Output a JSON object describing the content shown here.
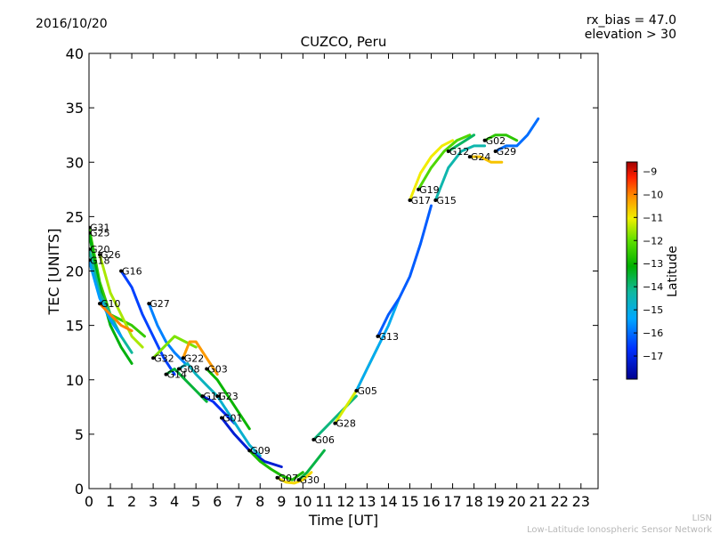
{
  "header": {
    "date": "2016/10/20",
    "rx_bias": "rx_bias = 47.0",
    "elevation": "elevation > 30"
  },
  "footer": {
    "line1": "LISN",
    "line2": "Low-Latitude Ionospheric Sensor Network"
  },
  "chart_data": {
    "type": "scatter",
    "title": "CUZCO, Peru",
    "xlabel": "Time [UT]",
    "ylabel": "TEC [UNITS]",
    "xlim": [
      0,
      23.8
    ],
    "ylim": [
      0,
      40
    ],
    "xticks": [
      0,
      1,
      2,
      3,
      4,
      5,
      6,
      7,
      8,
      9,
      10,
      11,
      12,
      13,
      14,
      15,
      16,
      17,
      18,
      19,
      20,
      21,
      22,
      23
    ],
    "yticks": [
      0,
      5,
      10,
      15,
      20,
      25,
      30,
      35,
      40
    ],
    "colorbar": {
      "label": "Latitude",
      "range": [
        -18,
        -8.6
      ],
      "ticks": [
        -17,
        -16,
        -15,
        -14,
        -13,
        -12,
        -11,
        -10,
        -9
      ]
    },
    "series": [
      {
        "name": "G31",
        "x": [
          0.0,
          0.5,
          1.0,
          1.5,
          2.0,
          2.6
        ],
        "y": [
          24.0,
          19.0,
          16.0,
          15.5,
          15.0,
          14.0
        ],
        "lat": -12.5
      },
      {
        "name": "G25",
        "x": [
          0.0,
          0.5,
          1.0,
          1.5,
          2.0
        ],
        "y": [
          23.5,
          18.5,
          15.0,
          13.0,
          11.5
        ],
        "lat": -13.2
      },
      {
        "name": "G20",
        "x": [
          0.0,
          0.5,
          1.0,
          1.5,
          2.0
        ],
        "y": [
          22.0,
          18.0,
          16.0,
          14.0,
          12.5
        ],
        "lat": -14.2
      },
      {
        "name": "G26",
        "x": [
          0.5,
          1.0,
          1.5,
          2.0,
          2.5
        ],
        "y": [
          21.5,
          18.0,
          16.0,
          14.0,
          13.0
        ],
        "lat": -11.5
      },
      {
        "name": "G18",
        "x": [
          0.0,
          0.5,
          1.0,
          1.5
        ],
        "y": [
          21.0,
          17.5,
          15.5,
          14.0
        ],
        "lat": -15.5
      },
      {
        "name": "G16",
        "x": [
          1.5,
          2.0,
          2.5,
          3.0,
          3.5,
          4.0
        ],
        "y": [
          20.0,
          18.5,
          16.0,
          14.0,
          12.0,
          10.5
        ],
        "lat": -16.5
      },
      {
        "name": "G10",
        "x": [
          0.5,
          1.0,
          1.5,
          2.0
        ],
        "y": [
          17.0,
          16.0,
          15.0,
          14.5
        ],
        "lat": -10.0
      },
      {
        "name": "G27",
        "x": [
          2.8,
          3.2,
          3.6,
          4.0,
          4.5
        ],
        "y": [
          17.0,
          15.0,
          13.5,
          12.5,
          11.5
        ],
        "lat": -15.8
      },
      {
        "name": "G32",
        "x": [
          3.0,
          3.5,
          4.0,
          4.5,
          5.0
        ],
        "y": [
          12.0,
          13.0,
          14.0,
          13.5,
          13.0
        ],
        "lat": -11.8
      },
      {
        "name": "G22",
        "x": [
          4.4,
          4.7,
          5.0,
          5.5,
          6.0
        ],
        "y": [
          12.0,
          13.5,
          13.5,
          12.0,
          10.5
        ],
        "lat": -10.2
      },
      {
        "name": "G08",
        "x": [
          4.2,
          4.6,
          5.0,
          5.5,
          6.0
        ],
        "y": [
          11.0,
          11.5,
          10.5,
          9.5,
          8.5
        ],
        "lat": -14.6
      },
      {
        "name": "G14",
        "x": [
          3.6,
          4.0,
          4.5,
          5.0,
          5.5
        ],
        "y": [
          10.5,
          11.0,
          10.0,
          9.0,
          8.0
        ],
        "lat": -13.5
      },
      {
        "name": "G03",
        "x": [
          5.5,
          6.0,
          6.5,
          7.0,
          7.5
        ],
        "y": [
          11.0,
          10.0,
          8.5,
          7.0,
          5.5
        ],
        "lat": -13.0
      },
      {
        "name": "G11",
        "x": [
          5.3,
          5.8,
          6.3,
          6.8
        ],
        "y": [
          8.5,
          8.0,
          7.0,
          6.0
        ],
        "lat": -16.8
      },
      {
        "name": "G23",
        "x": [
          6.0,
          6.5,
          7.0,
          7.5,
          8.0
        ],
        "y": [
          8.5,
          7.0,
          5.5,
          4.0,
          3.0
        ],
        "lat": -14.8
      },
      {
        "name": "G01",
        "x": [
          6.2,
          6.8,
          7.5,
          8.2,
          9.0
        ],
        "y": [
          6.5,
          5.0,
          3.5,
          2.5,
          2.0
        ],
        "lat": -17.2
      },
      {
        "name": "G09",
        "x": [
          7.5,
          8.0,
          8.5,
          9.0,
          9.5,
          10.0
        ],
        "y": [
          3.5,
          2.5,
          1.8,
          1.2,
          0.8,
          1.5
        ],
        "lat": -12.8
      },
      {
        "name": "G07",
        "x": [
          8.8,
          9.2,
          9.6,
          10.0,
          10.4
        ],
        "y": [
          1.0,
          0.6,
          0.5,
          0.8,
          1.5
        ],
        "lat": -10.8
      },
      {
        "name": "G30",
        "x": [
          9.8,
          10.2,
          10.6,
          11.0
        ],
        "y": [
          0.8,
          1.5,
          2.5,
          3.5
        ],
        "lat": -13.6
      },
      {
        "name": "G06",
        "x": [
          10.5,
          11.0,
          11.5,
          12.0,
          12.5
        ],
        "y": [
          4.5,
          5.5,
          6.5,
          7.5,
          8.5
        ],
        "lat": -14.0
      },
      {
        "name": "G28",
        "x": [
          11.5,
          12.0,
          12.5,
          13.0,
          13.5
        ],
        "y": [
          6.0,
          7.5,
          9.0,
          11.0,
          13.0
        ],
        "lat": -11.2
      },
      {
        "name": "G05",
        "x": [
          12.5,
          13.0,
          13.5,
          14.0,
          14.5
        ],
        "y": [
          9.0,
          11.0,
          13.0,
          15.0,
          17.5
        ],
        "lat": -15.2
      },
      {
        "name": "G13",
        "x": [
          13.5,
          14.0,
          14.5,
          15.0,
          15.5,
          16.0
        ],
        "y": [
          14.0,
          16.0,
          17.5,
          19.5,
          22.5,
          26.0
        ],
        "lat": -16.2
      },
      {
        "name": "G17",
        "x": [
          15.0,
          15.5,
          16.0,
          16.5,
          17.0
        ],
        "y": [
          26.5,
          29.0,
          30.5,
          31.5,
          32.0
        ],
        "lat": -11.0
      },
      {
        "name": "G19",
        "x": [
          15.4,
          16.0,
          16.6,
          17.2,
          17.8
        ],
        "y": [
          27.5,
          29.5,
          31.0,
          32.0,
          32.5
        ],
        "lat": -12.2
      },
      {
        "name": "G15",
        "x": [
          16.2,
          16.8,
          17.4,
          18.0,
          18.5
        ],
        "y": [
          26.5,
          29.5,
          31.0,
          31.5,
          31.5
        ],
        "lat": -14.4
      },
      {
        "name": "G12",
        "x": [
          16.8,
          17.2,
          17.6,
          18.0
        ],
        "y": [
          31.0,
          31.5,
          32.0,
          32.5
        ],
        "lat": -13.8
      },
      {
        "name": "G24",
        "x": [
          17.8,
          18.3,
          18.8,
          19.3
        ],
        "y": [
          30.5,
          30.5,
          30.0,
          30.0
        ],
        "lat": -10.6
      },
      {
        "name": "G02",
        "x": [
          18.5,
          19.0,
          19.5,
          20.0
        ],
        "y": [
          32.0,
          32.5,
          32.5,
          32.0
        ],
        "lat": -12.6
      },
      {
        "name": "G29",
        "x": [
          19.0,
          19.5,
          20.0,
          20.5,
          21.0
        ],
        "y": [
          31.0,
          31.5,
          31.5,
          32.5,
          34.0
        ],
        "lat": -16.0
      }
    ]
  }
}
